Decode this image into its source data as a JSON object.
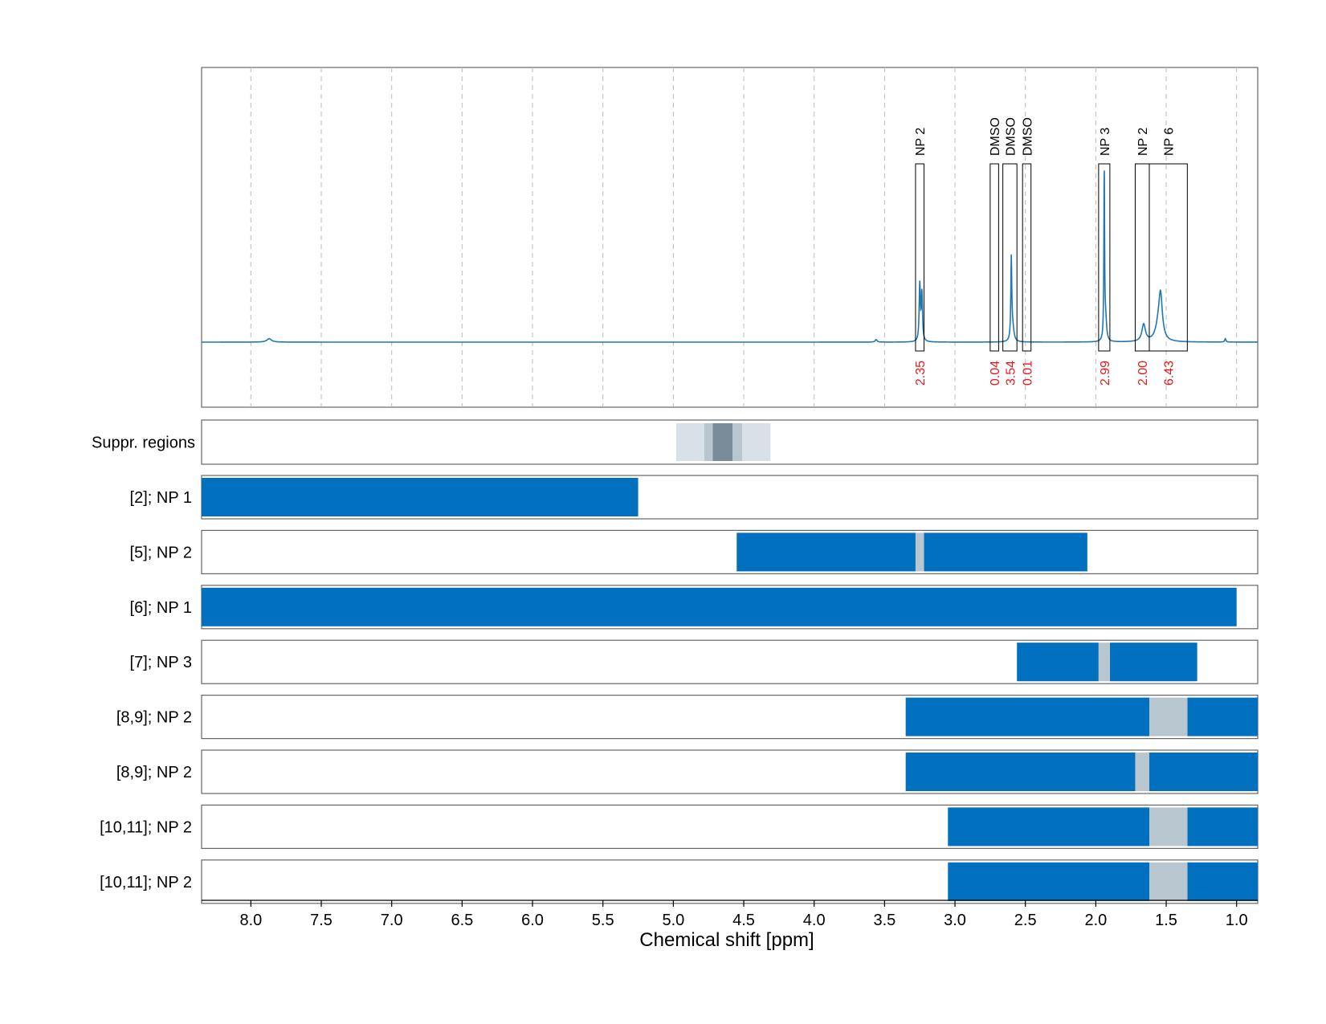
{
  "chart_data": {
    "type": "nmr-spectrum",
    "xlabel": "Chemical shift [ppm]",
    "xlim": [
      8.35,
      0.85
    ],
    "x_ticks": [
      "8.0",
      "7.5",
      "7.0",
      "6.5",
      "6.0",
      "5.5",
      "5.0",
      "4.5",
      "4.0",
      "3.5",
      "3.0",
      "2.5",
      "2.0",
      "1.5",
      "1.0"
    ],
    "x_tick_values": [
      8.0,
      7.5,
      7.0,
      6.5,
      6.0,
      5.5,
      5.0,
      4.5,
      4.0,
      3.5,
      3.0,
      2.5,
      2.0,
      1.5,
      1.0
    ],
    "grid": "vertical dashed",
    "colors": {
      "spectrum": "#1f77b4",
      "bar": "#0070bf",
      "gap": "#b8c6cf",
      "integral": "#e41a1c",
      "supp_light": "#d8e1e8",
      "supp_mid": "#b8c6cf",
      "supp_dark": "#7a8c9a"
    },
    "spectrum": {
      "peaks": [
        {
          "center": 7.87,
          "height": 0.02,
          "width": 0.02
        },
        {
          "center": 3.56,
          "height": 0.015,
          "width": 0.008
        },
        {
          "center": 3.25,
          "height": 0.33,
          "width": 0.005
        },
        {
          "center": 3.235,
          "height": 0.28,
          "width": 0.005
        },
        {
          "center": 2.6,
          "height": 0.47,
          "width": 0.004
        },
        {
          "center": 2.59,
          "height": 0.08,
          "width": 0.01
        },
        {
          "center": 1.94,
          "height": 1.0,
          "width": 0.003
        },
        {
          "center": 1.93,
          "height": 0.12,
          "width": 0.008
        },
        {
          "center": 1.66,
          "height": 0.1,
          "width": 0.015
        },
        {
          "center": 1.54,
          "height": 0.24,
          "width": 0.015
        },
        {
          "center": 1.555,
          "height": 0.08,
          "width": 0.025
        },
        {
          "center": 1.08,
          "height": 0.02,
          "width": 0.005
        }
      ]
    },
    "annotations": [
      {
        "label": "NP 2",
        "integral": "2.35",
        "x_range": [
          3.28,
          3.22
        ]
      },
      {
        "label": "DMSO",
        "integral": "0.04",
        "x_range": [
          2.75,
          2.69
        ]
      },
      {
        "label": "DMSO",
        "integral": "3.54",
        "x_range": [
          2.66,
          2.56
        ]
      },
      {
        "label": "DMSO",
        "integral": "0.01",
        "x_range": [
          2.52,
          2.46
        ]
      },
      {
        "label": "NP 3",
        "integral": "2.99",
        "x_range": [
          1.98,
          1.9
        ]
      },
      {
        "label": "NP 2",
        "integral": "2.00",
        "x_range": [
          1.72,
          1.62
        ]
      },
      {
        "label": "NP 6",
        "integral": "6.43",
        "x_range": [
          1.62,
          1.35
        ]
      }
    ],
    "suppression_label": "Suppr. regions",
    "suppression_regions": [
      {
        "from": 4.98,
        "to": 4.78,
        "shade": "light"
      },
      {
        "from": 4.78,
        "to": 4.72,
        "shade": "mid"
      },
      {
        "from": 4.72,
        "to": 4.58,
        "shade": "dark"
      },
      {
        "from": 4.58,
        "to": 4.51,
        "shade": "mid"
      },
      {
        "from": 4.51,
        "to": 4.31,
        "shade": "light"
      }
    ],
    "tracks": [
      {
        "label": "[2]; NP 1",
        "bars": [
          [
            8.35,
            5.25
          ]
        ],
        "gaps": []
      },
      {
        "label": "[5]; NP 2",
        "bars": [
          [
            4.55,
            3.28
          ],
          [
            3.22,
            2.06
          ]
        ],
        "gaps": [
          [
            3.28,
            3.22
          ]
        ]
      },
      {
        "label": "[6]; NP 1",
        "bars": [
          [
            8.35,
            1.0
          ]
        ],
        "gaps": []
      },
      {
        "label": "[7]; NP 3",
        "bars": [
          [
            2.56,
            1.98
          ],
          [
            1.9,
            1.28
          ]
        ],
        "gaps": [
          [
            1.98,
            1.9
          ]
        ]
      },
      {
        "label": "[8,9]; NP 2",
        "bars": [
          [
            3.35,
            1.62
          ],
          [
            1.35,
            0.85
          ]
        ],
        "gaps": [
          [
            1.62,
            1.35
          ]
        ]
      },
      {
        "label": "[8,9]; NP 2",
        "bars": [
          [
            3.35,
            1.72
          ],
          [
            1.62,
            0.85
          ]
        ],
        "gaps": [
          [
            1.72,
            1.62
          ]
        ]
      },
      {
        "label": "[10,11]; NP 2",
        "bars": [
          [
            3.05,
            1.62
          ],
          [
            1.35,
            0.85
          ]
        ],
        "gaps": [
          [
            1.62,
            1.35
          ]
        ]
      },
      {
        "label": "[10,11]; NP 2",
        "bars": [
          [
            3.05,
            1.62
          ],
          [
            1.35,
            0.85
          ]
        ],
        "gaps": [
          [
            1.62,
            1.35
          ]
        ]
      }
    ]
  }
}
